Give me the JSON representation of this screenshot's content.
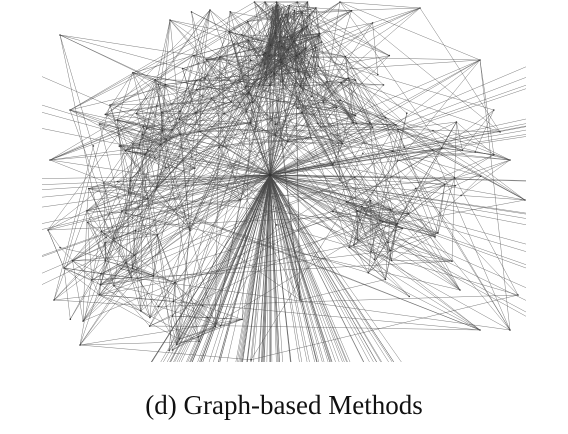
{
  "figure": {
    "caption": "(d) Graph-based Methods"
  },
  "graph": {
    "edge_color": "#4a4a4a",
    "node_color": "#333333",
    "background": "#ffffff"
  }
}
